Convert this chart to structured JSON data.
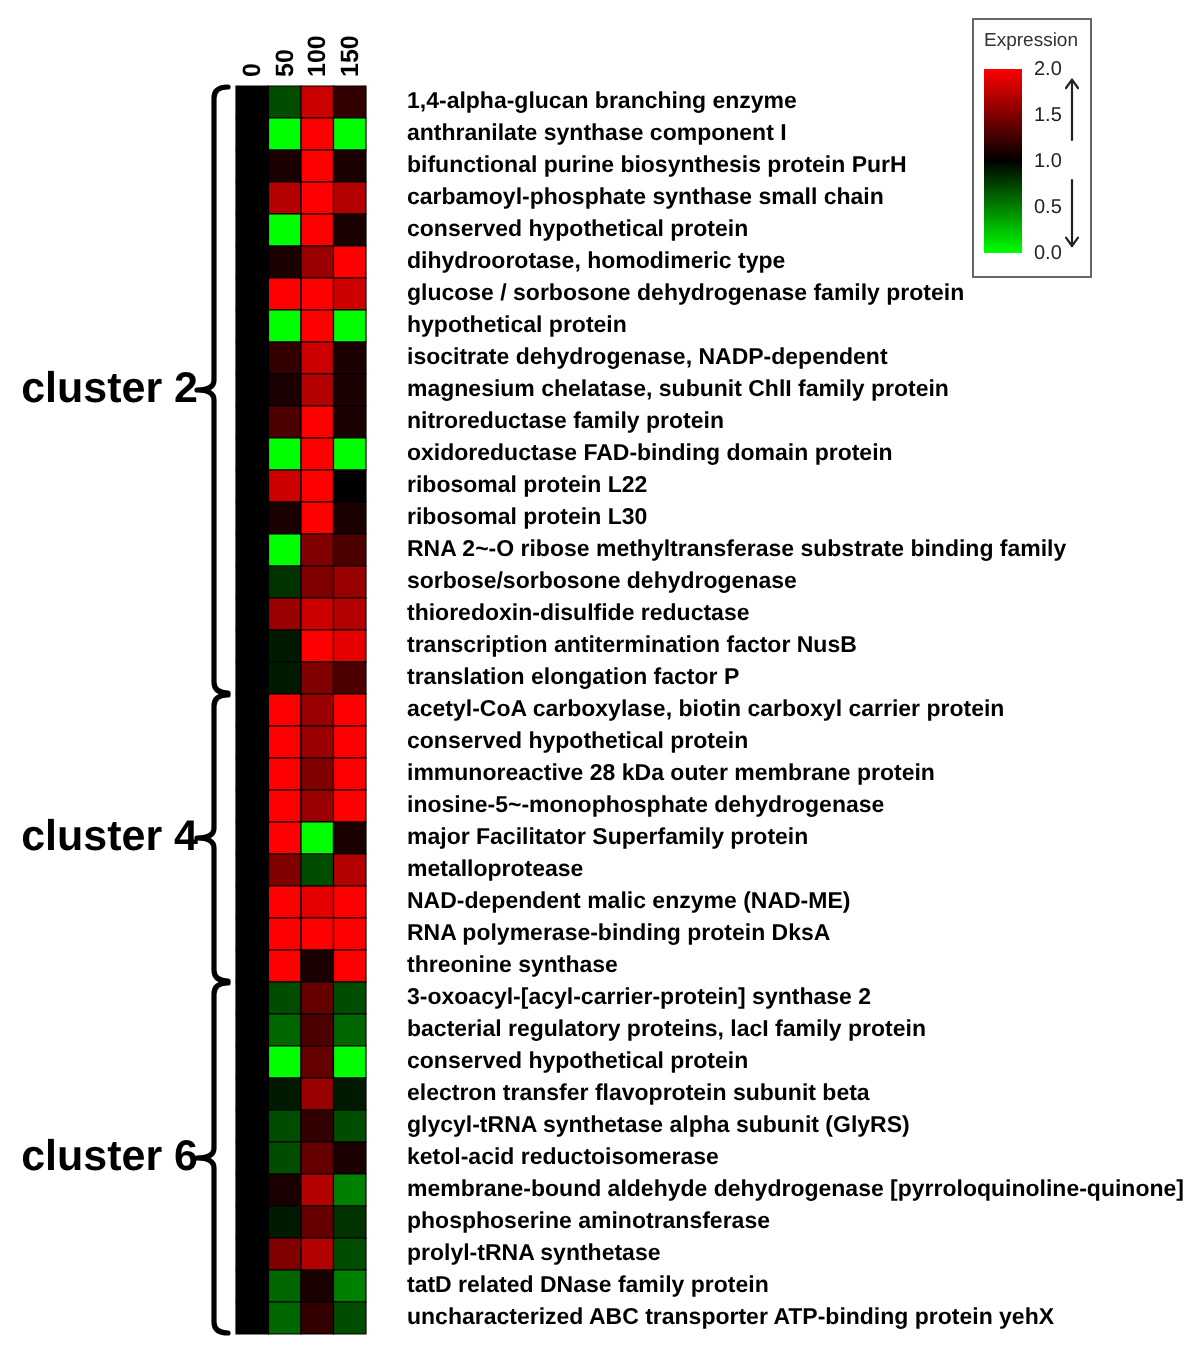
{
  "chart_data": {
    "type": "heatmap",
    "categories": [
      "0",
      "50",
      "100",
      "150"
    ],
    "y_categories": [
      "1,4-alpha-glucan branching enzyme",
      "anthranilate synthase component I",
      "bifunctional purine biosynthesis protein PurH",
      "carbamoyl-phosphate synthase small chain",
      "conserved hypothetical protein",
      "dihydroorotase, homodimeric type",
      "glucose / sorbosone dehydrogenase family protein",
      "hypothetical protein",
      "isocitrate dehydrogenase, NADP-dependent",
      "magnesium chelatase, subunit ChlI family protein",
      "nitroreductase family protein",
      "oxidoreductase FAD-binding domain protein",
      "ribosomal protein L22",
      "ribosomal protein L30",
      "RNA 2~-O ribose methyltransferase substrate binding family",
      "sorbose/sorbosone dehydrogenase",
      "thioredoxin-disulfide reductase",
      "transcription antitermination factor NusB",
      "translation elongation factor P",
      "acetyl-CoA carboxylase, biotin carboxyl carrier protein",
      "conserved hypothetical protein",
      "immunoreactive 28 kDa outer membrane protein",
      "inosine-5~-monophosphate dehydrogenase",
      "major Facilitator Superfamily protein",
      "metalloprotease",
      "NAD-dependent malic enzyme (NAD-ME)",
      "RNA polymerase-binding protein DksA",
      "threonine synthase",
      "3-oxoacyl-[acyl-carrier-protein] synthase 2",
      "bacterial regulatory proteins, lacI family protein",
      "conserved hypothetical protein",
      "electron transfer flavoprotein subunit beta",
      "glycyl-tRNA synthetase alpha subunit (GlyRS)",
      "ketol-acid reductoisomerase",
      "membrane-bound aldehyde dehydrogenase [pyrroloquinoline-quinone]",
      "phosphoserine aminotransferase",
      "prolyl-tRNA synthetase",
      "tatD related DNase family protein",
      "uncharacterized ABC transporter ATP-binding protein yehX"
    ],
    "cells": [
      [
        1.0,
        0.7,
        1.8,
        1.2
      ],
      [
        1.0,
        0.0,
        2.0,
        0.0
      ],
      [
        1.0,
        1.1,
        2.0,
        1.1
      ],
      [
        1.0,
        1.7,
        2.0,
        1.7
      ],
      [
        1.0,
        0.0,
        2.0,
        1.1
      ],
      [
        1.0,
        1.1,
        1.6,
        2.0
      ],
      [
        1.0,
        2.0,
        2.0,
        1.8
      ],
      [
        1.0,
        0.0,
        2.0,
        0.0
      ],
      [
        1.0,
        1.2,
        1.8,
        1.1
      ],
      [
        1.0,
        1.1,
        1.7,
        1.1
      ],
      [
        1.0,
        1.3,
        2.0,
        1.1
      ],
      [
        1.0,
        0.0,
        2.0,
        0.0
      ],
      [
        1.0,
        1.8,
        2.0,
        1.0
      ],
      [
        1.0,
        1.1,
        2.0,
        1.1
      ],
      [
        1.0,
        0.0,
        1.5,
        1.3
      ],
      [
        1.0,
        0.8,
        1.5,
        1.6
      ],
      [
        1.0,
        1.6,
        1.8,
        1.7
      ],
      [
        1.0,
        0.9,
        2.0,
        1.9
      ],
      [
        1.0,
        0.9,
        1.5,
        1.3
      ],
      [
        1.0,
        2.0,
        1.6,
        2.0
      ],
      [
        1.0,
        2.0,
        1.6,
        2.0
      ],
      [
        1.0,
        2.0,
        1.5,
        2.0
      ],
      [
        1.0,
        2.0,
        1.6,
        2.0
      ],
      [
        1.0,
        2.0,
        0.0,
        1.1
      ],
      [
        1.0,
        1.5,
        0.7,
        1.7
      ],
      [
        1.0,
        2.0,
        1.9,
        2.0
      ],
      [
        1.0,
        2.0,
        2.0,
        2.0
      ],
      [
        1.0,
        2.0,
        1.1,
        2.0
      ],
      [
        1.0,
        0.7,
        1.4,
        0.7
      ],
      [
        1.0,
        0.6,
        1.3,
        0.6
      ],
      [
        1.0,
        0.0,
        1.4,
        0.0
      ],
      [
        1.0,
        0.9,
        1.6,
        0.9
      ],
      [
        1.0,
        0.7,
        1.2,
        0.7
      ],
      [
        1.0,
        0.7,
        1.4,
        1.1
      ],
      [
        1.0,
        1.1,
        1.7,
        0.5
      ],
      [
        1.0,
        0.9,
        1.4,
        0.8
      ],
      [
        1.0,
        1.5,
        1.7,
        0.7
      ],
      [
        1.0,
        0.6,
        1.1,
        0.5
      ],
      [
        1.0,
        0.6,
        1.2,
        0.7
      ]
    ],
    "annotations": [
      "cluster 2",
      "cluster 4",
      "cluster 6"
    ],
    "clabel": "Expression",
    "clim": [
      0,
      2
    ],
    "cticks": [
      {
        "value": 2,
        "label": "2.0"
      },
      1.5,
      {
        "value": 1,
        "label": "1.0"
      },
      0.5,
      {
        "value": 0,
        "label": "0.0"
      }
    ]
  }
}
